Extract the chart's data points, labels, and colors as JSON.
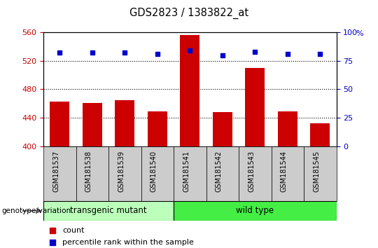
{
  "title": "GDS2823 / 1383822_at",
  "samples": [
    "GSM181537",
    "GSM181538",
    "GSM181539",
    "GSM181540",
    "GSM181541",
    "GSM181542",
    "GSM181543",
    "GSM181544",
    "GSM181545"
  ],
  "counts": [
    463,
    461,
    465,
    449,
    556,
    448,
    510,
    449,
    432
  ],
  "percentile_ranks": [
    82,
    82,
    82,
    81,
    84,
    80,
    83,
    81,
    81
  ],
  "ylim_left": [
    400,
    560
  ],
  "ylim_right": [
    0,
    100
  ],
  "yticks_left": [
    400,
    440,
    480,
    520,
    560
  ],
  "yticks_right": [
    0,
    25,
    50,
    75,
    100
  ],
  "grid_values": [
    440,
    480,
    520
  ],
  "bar_color": "#cc0000",
  "dot_color": "#0000cc",
  "transgenic_color": "#bbffbb",
  "wildtype_color": "#44ee44",
  "sample_label_bg": "#cccccc",
  "transgenic_label": "transgenic mutant",
  "wildtype_label": "wild type",
  "n_transgenic": 4,
  "n_wildtype": 5,
  "left_tick_color": "#cc0000",
  "right_tick_color": "#0000cc",
  "title_color": "#000000",
  "legend_count_label": "count",
  "legend_percentile_label": "percentile rank within the sample",
  "bar_bottom": 400,
  "genotype_label": "genotype/variation"
}
